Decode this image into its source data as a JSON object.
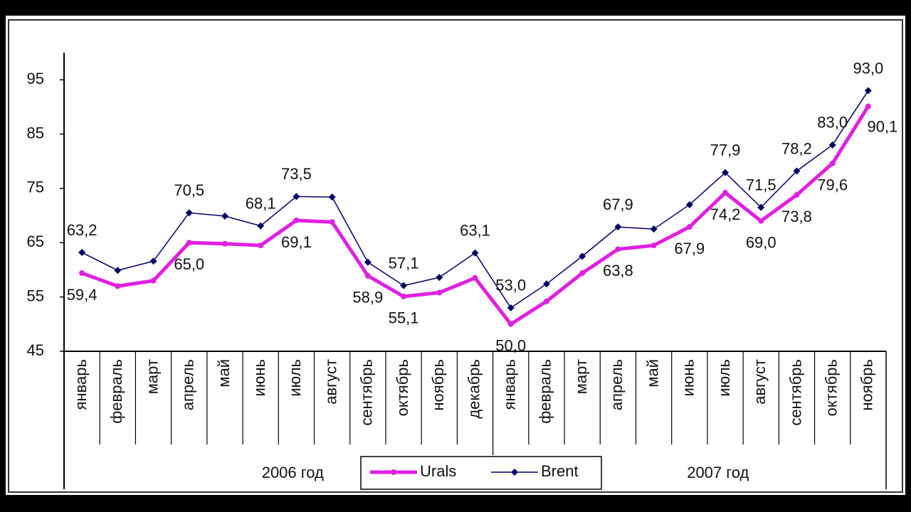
{
  "chart_data": {
    "type": "line",
    "categories": [
      "январь",
      "февраль",
      "март",
      "апрель",
      "май",
      "июнь",
      "июль",
      "август",
      "сентябрь",
      "октябрь",
      "ноябрь",
      "декабрь",
      "январь",
      "февраль",
      "март",
      "апрель",
      "май",
      "июнь",
      "июль",
      "август",
      "сентябрь",
      "октябрь",
      "ноябрь"
    ],
    "groups": [
      "2006 год",
      "2007 год"
    ],
    "series": [
      {
        "name": "Urals",
        "color": "#e020e0",
        "values": [
          59.4,
          57.0,
          58.0,
          65.0,
          64.8,
          64.5,
          69.1,
          68.8,
          58.9,
          55.1,
          55.8,
          58.5,
          50.0,
          54.2,
          59.4,
          63.8,
          64.5,
          67.9,
          74.2,
          69.0,
          73.8,
          79.6,
          90.1
        ],
        "value_labels": [
          "59,4",
          null,
          null,
          "65,0",
          null,
          null,
          "69,1",
          null,
          "58,9",
          "55,1",
          null,
          null,
          "50,0",
          null,
          null,
          "63,8",
          null,
          "67,9",
          "74,2",
          "69,0",
          "73,8",
          "79,6",
          "90,1"
        ]
      },
      {
        "name": "Brent",
        "color": "#000066",
        "values": [
          63.2,
          59.9,
          61.6,
          70.5,
          69.9,
          68.1,
          73.5,
          73.4,
          61.4,
          57.1,
          58.6,
          63.1,
          53.0,
          57.4,
          62.5,
          67.9,
          67.5,
          72.0,
          77.9,
          71.5,
          78.2,
          83.0,
          93.0
        ],
        "value_labels": [
          "63,2",
          null,
          null,
          "70,5",
          null,
          "68,1",
          "73,5",
          null,
          null,
          "57,1",
          null,
          "63,1",
          "53,0",
          null,
          null,
          "67,9",
          null,
          null,
          "77,9",
          "71,5",
          "78,2",
          "83,0",
          "93,0"
        ]
      }
    ],
    "ylim": [
      45,
      100
    ],
    "yticks": [
      45,
      55,
      65,
      75,
      85,
      95
    ]
  }
}
